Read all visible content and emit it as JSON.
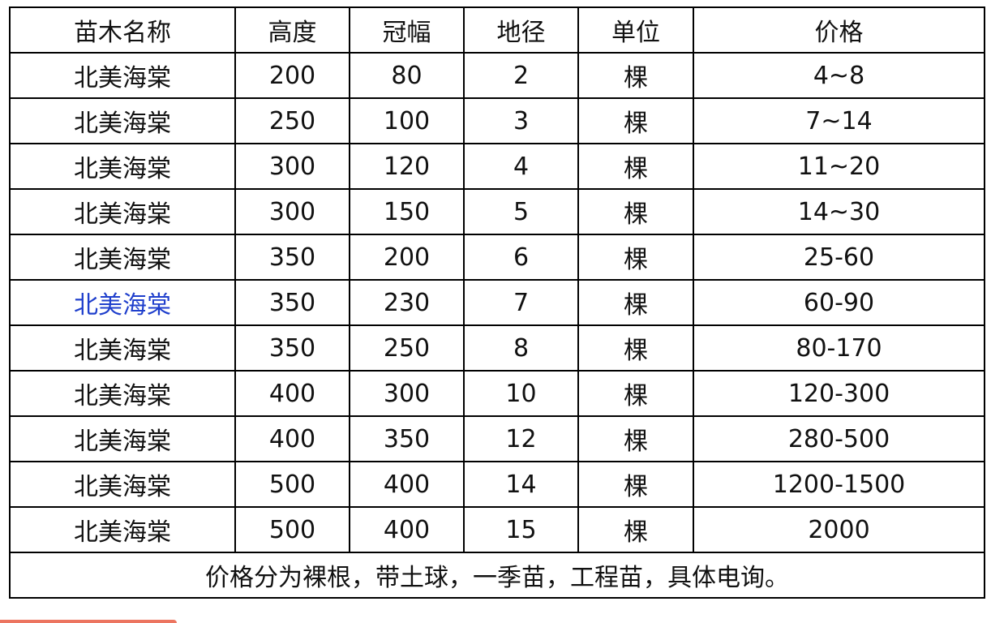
{
  "headers": [
    "苗木名称",
    "高度",
    "冠幅",
    "地径",
    "单位",
    "价格"
  ],
  "rows": [
    [
      "北美海棠",
      "200",
      "80",
      "2",
      "棵",
      "4~8"
    ],
    [
      "北美海棠",
      "250",
      "100",
      "3",
      "棵",
      "7~14"
    ],
    [
      "北美海棠",
      "300",
      "120",
      "4",
      "棵",
      "11~20"
    ],
    [
      "北美海棠",
      "300",
      "150",
      "5",
      "棵",
      "14~30"
    ],
    [
      "北美海棠",
      "350",
      "200",
      "6",
      "棵",
      "25-60"
    ],
    [
      "北美海棠",
      "350",
      "230",
      "7",
      "棵",
      "60-90"
    ],
    [
      "北美海棠",
      "350",
      "250",
      "8",
      "棵",
      "80-170"
    ],
    [
      "北美海棠",
      "400",
      "300",
      "10",
      "棵",
      "120-300"
    ],
    [
      "北美海棠",
      "400",
      "350",
      "12",
      "棵",
      "280-500"
    ],
    [
      "北美海棠",
      "500",
      "400",
      "14",
      "棵",
      "1200-1500"
    ],
    [
      "北美海棠",
      "500",
      "400",
      "15",
      "棵",
      "2000"
    ]
  ],
  "highlighted_row": 5,
  "highlight_color": "#1f3fcc",
  "note": "价格分为裸根，带土球，一季苗，工程苗，具体电询。"
}
